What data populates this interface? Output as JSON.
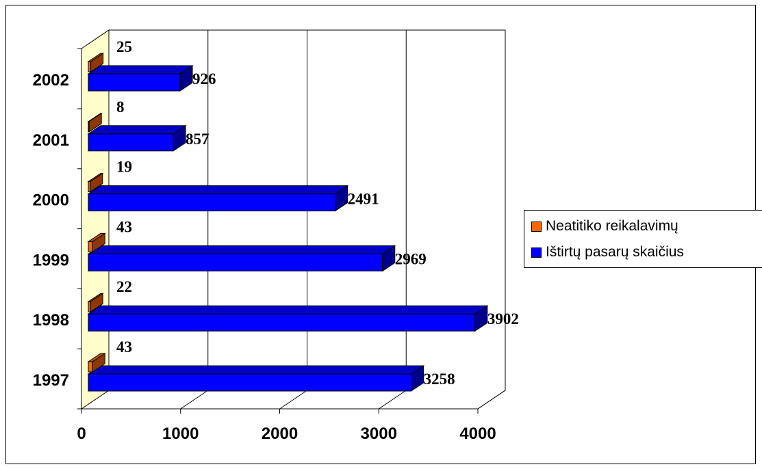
{
  "chart_data": {
    "type": "bar",
    "orientation": "horizontal",
    "three_d": true,
    "categories": [
      "1997",
      "1998",
      "1999",
      "2000",
      "2001",
      "2002"
    ],
    "series": [
      {
        "name": "Neatitiko reikalavimų",
        "color": "#ff6600",
        "values": [
          43,
          22,
          43,
          19,
          8,
          25
        ]
      },
      {
        "name": "Ištirtų pasarų skaičius",
        "color": "#0000ff",
        "values": [
          3258,
          3902,
          2969,
          2491,
          857,
          926
        ]
      }
    ],
    "xlim": [
      0,
      4000
    ],
    "xticks": [
      "0",
      "1000",
      "2000",
      "3000",
      "4000"
    ],
    "grid": "vertical",
    "legend_position": "right",
    "wall_color": "#ffffcc"
  }
}
